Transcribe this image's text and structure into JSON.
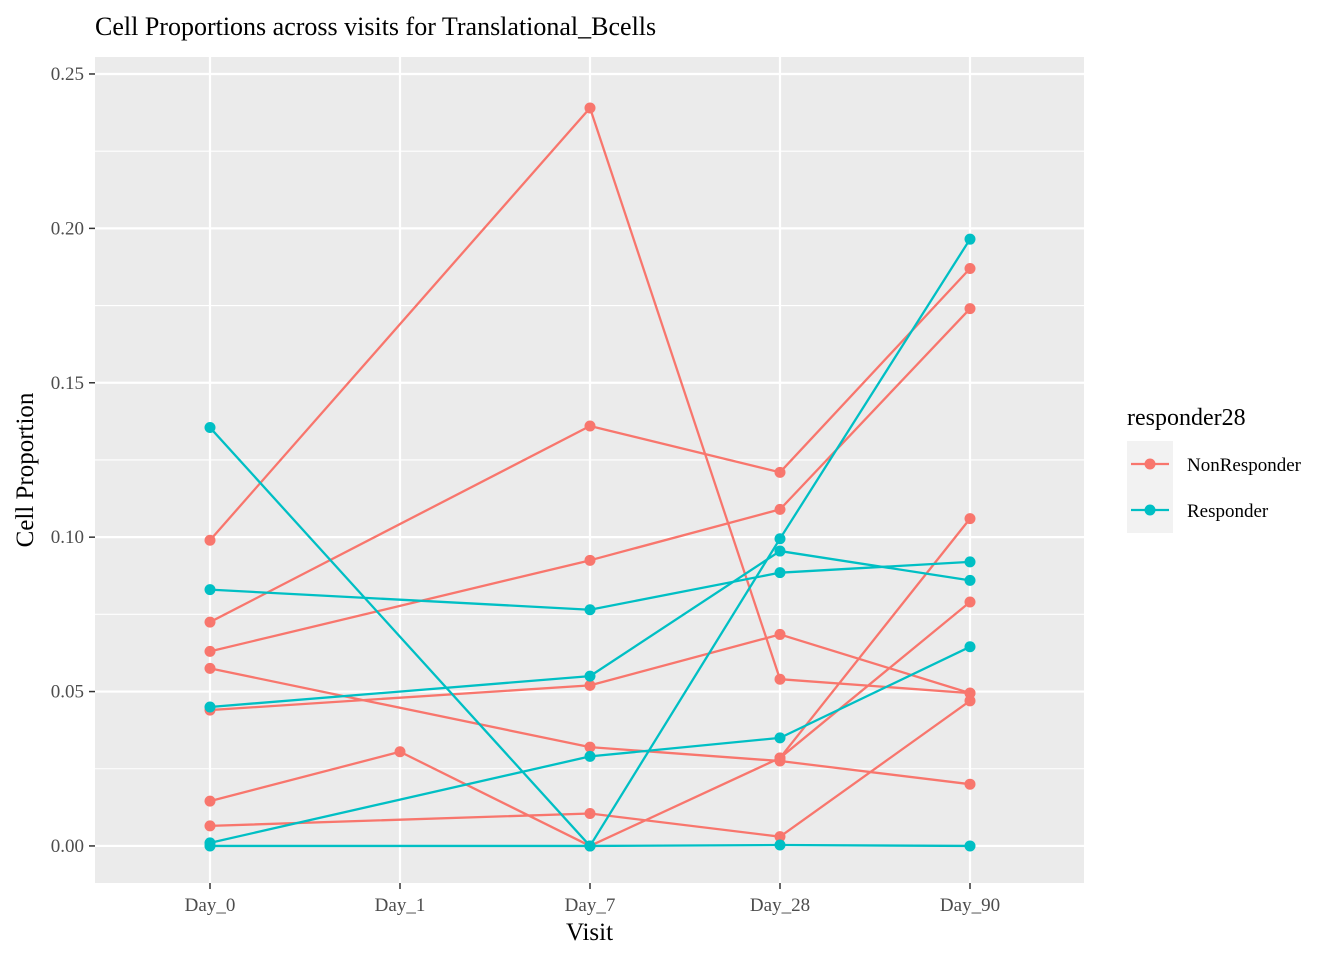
{
  "chart_data": {
    "type": "line",
    "title": "Cell Proportions across visits for Translational_Bcells",
    "xlabel": "Visit",
    "ylabel": "Cell Proportion",
    "categories": [
      "Day_0",
      "Day_1",
      "Day_7",
      "Day_28",
      "Day_90"
    ],
    "y_ticks": [
      "0.00",
      "0.05",
      "0.10",
      "0.15",
      "0.20",
      "0.25"
    ],
    "ylim": [
      -0.012,
      0.2555
    ],
    "grid": true,
    "legend": {
      "title": "responder28",
      "position": "right",
      "entries": [
        {
          "label": "NonResponder",
          "color": "#F8766D"
        },
        {
          "label": "Responder",
          "color": "#00BFC4"
        }
      ]
    },
    "groups": [
      {
        "name": "NonResponder",
        "color": "#F8766D",
        "subjects": [
          {
            "points": [
              [
                "Day_0",
                0.099
              ],
              [
                "Day_7",
                0.239
              ],
              [
                "Day_28",
                0.054
              ],
              [
                "Day_90",
                0.0495
              ]
            ]
          },
          {
            "points": [
              [
                "Day_0",
                0.0725
              ],
              [
                "Day_7",
                0.136
              ],
              [
                "Day_28",
                0.121
              ],
              [
                "Day_90",
                0.187
              ]
            ]
          },
          {
            "points": [
              [
                "Day_0",
                0.063
              ],
              [
                "Day_7",
                0.0925
              ],
              [
                "Day_28",
                0.109
              ],
              [
                "Day_90",
                0.174
              ]
            ]
          },
          {
            "points": [
              [
                "Day_0",
                0.0575
              ],
              [
                "Day_7",
                0.032
              ],
              [
                "Day_28",
                0.0275
              ],
              [
                "Day_90",
                0.02
              ]
            ]
          },
          {
            "points": [
              [
                "Day_0",
                0.044
              ],
              [
                "Day_7",
                0.052
              ],
              [
                "Day_28",
                0.0685
              ],
              [
                "Day_90",
                0.0495
              ]
            ]
          },
          {
            "points": [
              [
                "Day_0",
                0.0145
              ],
              [
                "Day_1",
                0.0305
              ],
              [
                "Day_7",
                0.0
              ],
              [
                "Day_28",
                0.0285
              ],
              [
                "Day_90",
                0.106
              ]
            ]
          },
          {
            "points": [
              [
                "Day_0",
                0.0065
              ],
              [
                "Day_7",
                0.0105
              ],
              [
                "Day_28",
                0.003
              ],
              [
                "Day_90",
                0.047
              ]
            ]
          },
          {
            "points": [
              [
                "Day_28",
                0.0285
              ],
              [
                "Day_90",
                0.079
              ]
            ]
          }
        ]
      },
      {
        "name": "Responder",
        "color": "#00BFC4",
        "subjects": [
          {
            "points": [
              [
                "Day_0",
                0.1355
              ],
              [
                "Day_7",
                0.0
              ],
              [
                "Day_28",
                0.0995
              ],
              [
                "Day_90",
                0.1965
              ]
            ]
          },
          {
            "points": [
              [
                "Day_0",
                0.083
              ],
              [
                "Day_7",
                0.0765
              ],
              [
                "Day_28",
                0.0885
              ],
              [
                "Day_90",
                0.092
              ]
            ]
          },
          {
            "points": [
              [
                "Day_0",
                0.045
              ],
              [
                "Day_7",
                0.055
              ],
              [
                "Day_28",
                0.0955
              ],
              [
                "Day_90",
                0.086
              ]
            ]
          },
          {
            "points": [
              [
                "Day_0",
                0.001
              ],
              [
                "Day_7",
                0.029
              ],
              [
                "Day_28",
                0.035
              ],
              [
                "Day_90",
                0.0645
              ]
            ]
          },
          {
            "points": [
              [
                "Day_0",
                0.0
              ],
              [
                "Day_7",
                0.0
              ],
              [
                "Day_28",
                0.0003
              ],
              [
                "Day_90",
                0.0
              ]
            ]
          }
        ]
      }
    ]
  }
}
